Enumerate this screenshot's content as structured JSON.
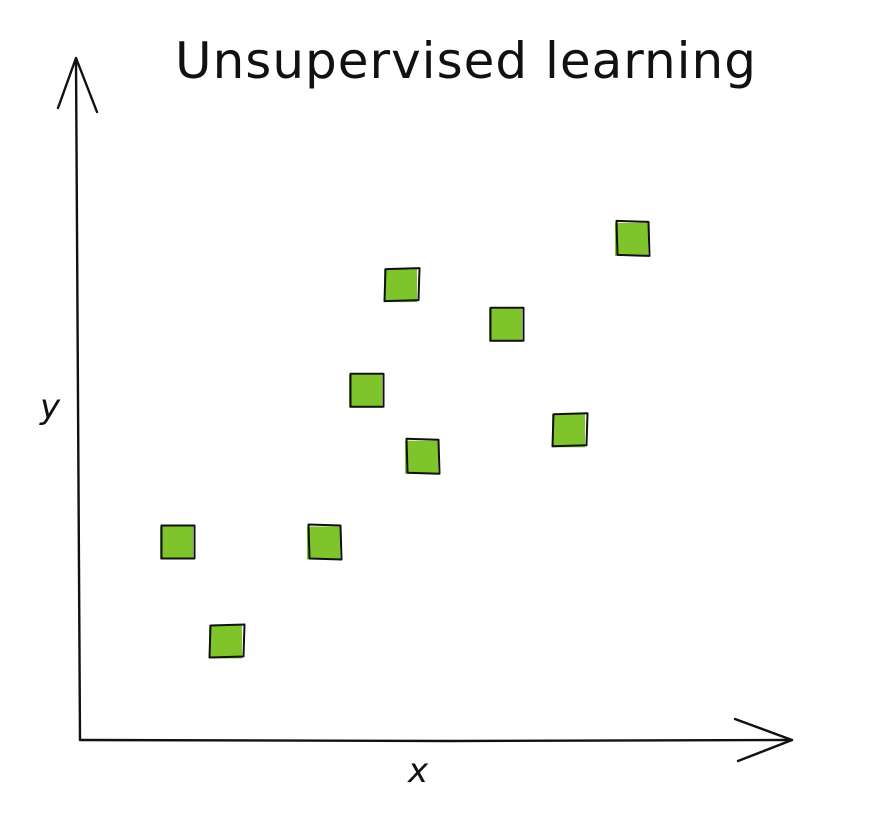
{
  "chart_data": {
    "type": "scatter",
    "title": "Unsupervised learning",
    "xlabel": "x",
    "ylabel": "y",
    "xlim": [
      0,
      10
    ],
    "ylim": [
      0,
      10
    ],
    "grid": false,
    "legend": "none",
    "marker": "square",
    "marker_color": "#7ec42a",
    "series": [
      {
        "points": [
          {
            "x": 1.4,
            "y": 3.0
          },
          {
            "x": 2.1,
            "y": 1.5
          },
          {
            "x": 3.5,
            "y": 3.0
          },
          {
            "x": 4.1,
            "y": 5.3
          },
          {
            "x": 4.6,
            "y": 6.9
          },
          {
            "x": 4.9,
            "y": 4.3
          },
          {
            "x": 6.1,
            "y": 6.3
          },
          {
            "x": 7.0,
            "y": 4.7
          },
          {
            "x": 7.9,
            "y": 7.6
          }
        ]
      }
    ]
  }
}
